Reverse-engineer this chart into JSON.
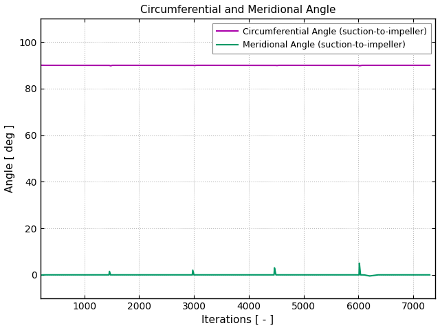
{
  "title": "Circumferential and Meridional Angle",
  "xlabel": "Iterations [ - ]",
  "ylabel": "Angle [ deg ]",
  "xlim": [
    200,
    7400
  ],
  "ylim": [
    -10,
    110
  ],
  "yticks": [
    0,
    20,
    40,
    60,
    80,
    100
  ],
  "xticks": [
    1000,
    2000,
    3000,
    4000,
    5000,
    6000,
    7000
  ],
  "circumferential_color": "#aa00aa",
  "meridional_color": "#009966",
  "legend_labels": [
    "Circumferential Angle (suction-to-impeller)",
    "Meridional Angle (suction-to-impeller)"
  ],
  "background_color": "#ffffff",
  "grid_color": "#bbbbbb",
  "figure_width": 6.4,
  "figure_height": 4.8,
  "dpi": 100
}
